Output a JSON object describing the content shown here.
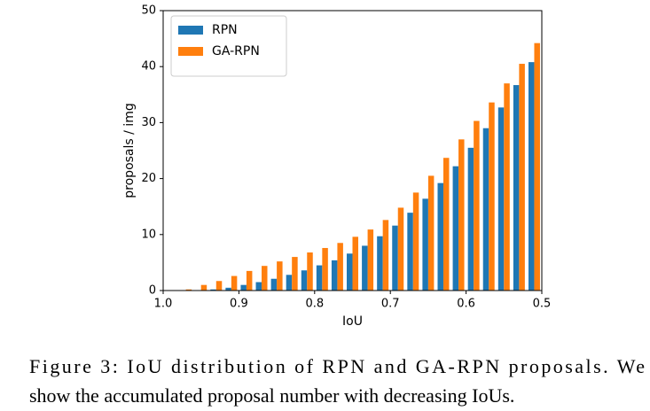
{
  "chart_data": {
    "type": "bar",
    "x": [
      0.97,
      0.95,
      0.93,
      0.91,
      0.89,
      0.87,
      0.85,
      0.83,
      0.81,
      0.79,
      0.77,
      0.75,
      0.73,
      0.71,
      0.69,
      0.67,
      0.65,
      0.63,
      0.61,
      0.59,
      0.57,
      0.55,
      0.53,
      0.51
    ],
    "series": [
      {
        "name": "RPN",
        "color": "#1f77b4",
        "values": [
          0,
          0.05,
          0.2,
          0.5,
          1.0,
          1.5,
          2.1,
          2.8,
          3.6,
          4.5,
          5.4,
          6.6,
          8.0,
          9.7,
          11.6,
          13.9,
          16.4,
          19.2,
          22.2,
          25.5,
          29.0,
          32.7,
          36.7,
          40.8
        ]
      },
      {
        "name": "GA-RPN",
        "color": "#ff7f0e",
        "values": [
          0.2,
          1.0,
          1.7,
          2.6,
          3.5,
          4.4,
          5.2,
          6.0,
          6.8,
          7.6,
          8.5,
          9.6,
          10.9,
          12.6,
          14.8,
          17.5,
          20.5,
          23.7,
          27.0,
          30.3,
          33.6,
          37.0,
          40.5,
          44.2
        ]
      }
    ],
    "xlabel": "IoU",
    "ylabel": "proposals / img",
    "xlim": [
      1,
      0.5
    ],
    "xticks": [
      {
        "value": 1,
        "label": "1.0"
      },
      0.9,
      0.8,
      0.7,
      0.6,
      0.5
    ],
    "ylim": [
      0,
      50
    ],
    "yticks": [
      0,
      10,
      20,
      30,
      40,
      50
    ],
    "grid": false,
    "legend": "upper left"
  },
  "caption": [
    "Figure 3: IoU distribution of RPN and GA-RPN proposals. We",
    "show the accumulated proposal number with decreasing IoUs."
  ]
}
